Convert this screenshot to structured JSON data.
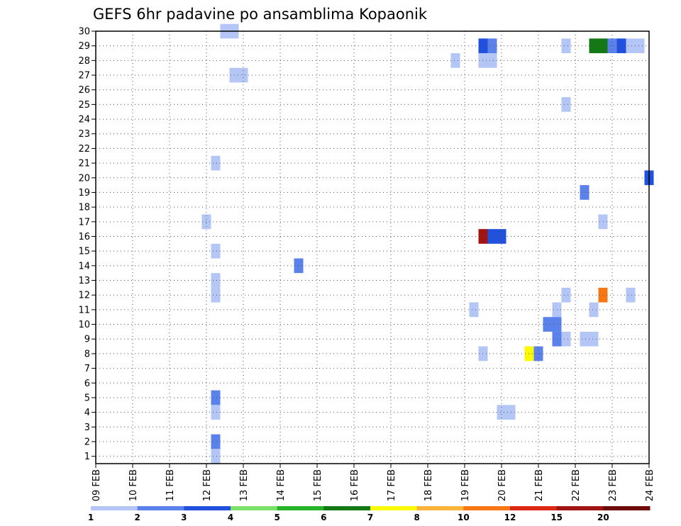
{
  "chart_data": {
    "type": "heatmap",
    "title": "GEFS 6hr padavine po ansamblima Kopaonik",
    "xlabel": "",
    "ylabel": "",
    "x_unit": "days since 09 FEB, 6-hour steps",
    "x_ticks": [
      "09 FEB",
      "10 FEB",
      "11 FEB",
      "12 FEB",
      "13 FEB",
      "14 FEB",
      "15 FEB",
      "16 FEB",
      "17 FEB",
      "18 FEB",
      "19 FEB",
      "20 FEB",
      "21 FEB",
      "22 FEB",
      "23 FEB",
      "24 FEB"
    ],
    "xlim": [
      0,
      15
    ],
    "y_ticks": [
      1,
      2,
      3,
      4,
      5,
      6,
      7,
      8,
      9,
      10,
      11,
      12,
      13,
      14,
      15,
      16,
      17,
      18,
      19,
      20,
      21,
      22,
      23,
      24,
      25,
      26,
      27,
      28,
      29,
      30
    ],
    "ylim": [
      0.5,
      30
    ],
    "grid": true,
    "colorbar": {
      "labels": [
        "1",
        "2",
        "3",
        "4",
        "5",
        "6",
        "7",
        "8",
        "10",
        "12",
        "15",
        "20"
      ],
      "colors": [
        "#b3c6f5",
        "#5a82ea",
        "#2050dc",
        "#7de06a",
        "#28b428",
        "#147814",
        "#fafa00",
        "#fab43c",
        "#f57814",
        "#dc2814",
        "#a01414",
        "#6e0a0a"
      ]
    },
    "cells": [
      {
        "x": 3.5,
        "ens": 30,
        "level": 1
      },
      {
        "x": 3.75,
        "ens": 30,
        "level": 1
      },
      {
        "x": 10.5,
        "ens": 29,
        "level": 3
      },
      {
        "x": 10.75,
        "ens": 29,
        "level": 2
      },
      {
        "x": 12.75,
        "ens": 29,
        "level": 1
      },
      {
        "x": 13.5,
        "ens": 29,
        "level": 6
      },
      {
        "x": 13.75,
        "ens": 29,
        "level": 6
      },
      {
        "x": 14.0,
        "ens": 29,
        "level": 2
      },
      {
        "x": 14.25,
        "ens": 29,
        "level": 3
      },
      {
        "x": 14.5,
        "ens": 29,
        "level": 1
      },
      {
        "x": 14.75,
        "ens": 29,
        "level": 1
      },
      {
        "x": 10.5,
        "ens": 28,
        "level": 1
      },
      {
        "x": 10.75,
        "ens": 28,
        "level": 1
      },
      {
        "x": 9.75,
        "ens": 28,
        "level": 1
      },
      {
        "x": 3.75,
        "ens": 27,
        "level": 1
      },
      {
        "x": 4.0,
        "ens": 27,
        "level": 1
      },
      {
        "x": 12.75,
        "ens": 25,
        "level": 1
      },
      {
        "x": 3.25,
        "ens": 21,
        "level": 1
      },
      {
        "x": 15.0,
        "ens": 20,
        "level": 3
      },
      {
        "x": 13.25,
        "ens": 19,
        "level": 2
      },
      {
        "x": 13.75,
        "ens": 17,
        "level": 1
      },
      {
        "x": 3.0,
        "ens": 17,
        "level": 1
      },
      {
        "x": 10.5,
        "ens": 16,
        "level": 11
      },
      {
        "x": 10.75,
        "ens": 16,
        "level": 3
      },
      {
        "x": 11.0,
        "ens": 16,
        "level": 3
      },
      {
        "x": 3.25,
        "ens": 15,
        "level": 1
      },
      {
        "x": 5.5,
        "ens": 14,
        "level": 2
      },
      {
        "x": 3.25,
        "ens": 13,
        "level": 1
      },
      {
        "x": 3.25,
        "ens": 12,
        "level": 1
      },
      {
        "x": 12.75,
        "ens": 12,
        "level": 1
      },
      {
        "x": 13.75,
        "ens": 12,
        "level": 9
      },
      {
        "x": 14.5,
        "ens": 12,
        "level": 1
      },
      {
        "x": 12.5,
        "ens": 11,
        "level": 1
      },
      {
        "x": 13.5,
        "ens": 11,
        "level": 1
      },
      {
        "x": 10.25,
        "ens": 11,
        "level": 1
      },
      {
        "x": 12.25,
        "ens": 10,
        "level": 2
      },
      {
        "x": 12.5,
        "ens": 10,
        "level": 2
      },
      {
        "x": 12.5,
        "ens": 9,
        "level": 2
      },
      {
        "x": 12.75,
        "ens": 9,
        "level": 1
      },
      {
        "x": 13.25,
        "ens": 9,
        "level": 1
      },
      {
        "x": 13.5,
        "ens": 9,
        "level": 1
      },
      {
        "x": 10.5,
        "ens": 8,
        "level": 1
      },
      {
        "x": 11.75,
        "ens": 8,
        "level": 7
      },
      {
        "x": 12.0,
        "ens": 8,
        "level": 2
      },
      {
        "x": 3.25,
        "ens": 5,
        "level": 2
      },
      {
        "x": 3.25,
        "ens": 4,
        "level": 1
      },
      {
        "x": 11.0,
        "ens": 4,
        "level": 1
      },
      {
        "x": 11.25,
        "ens": 4,
        "level": 1
      },
      {
        "x": 3.25,
        "ens": 2,
        "level": 2
      },
      {
        "x": 3.25,
        "ens": 1,
        "level": 1
      }
    ]
  }
}
